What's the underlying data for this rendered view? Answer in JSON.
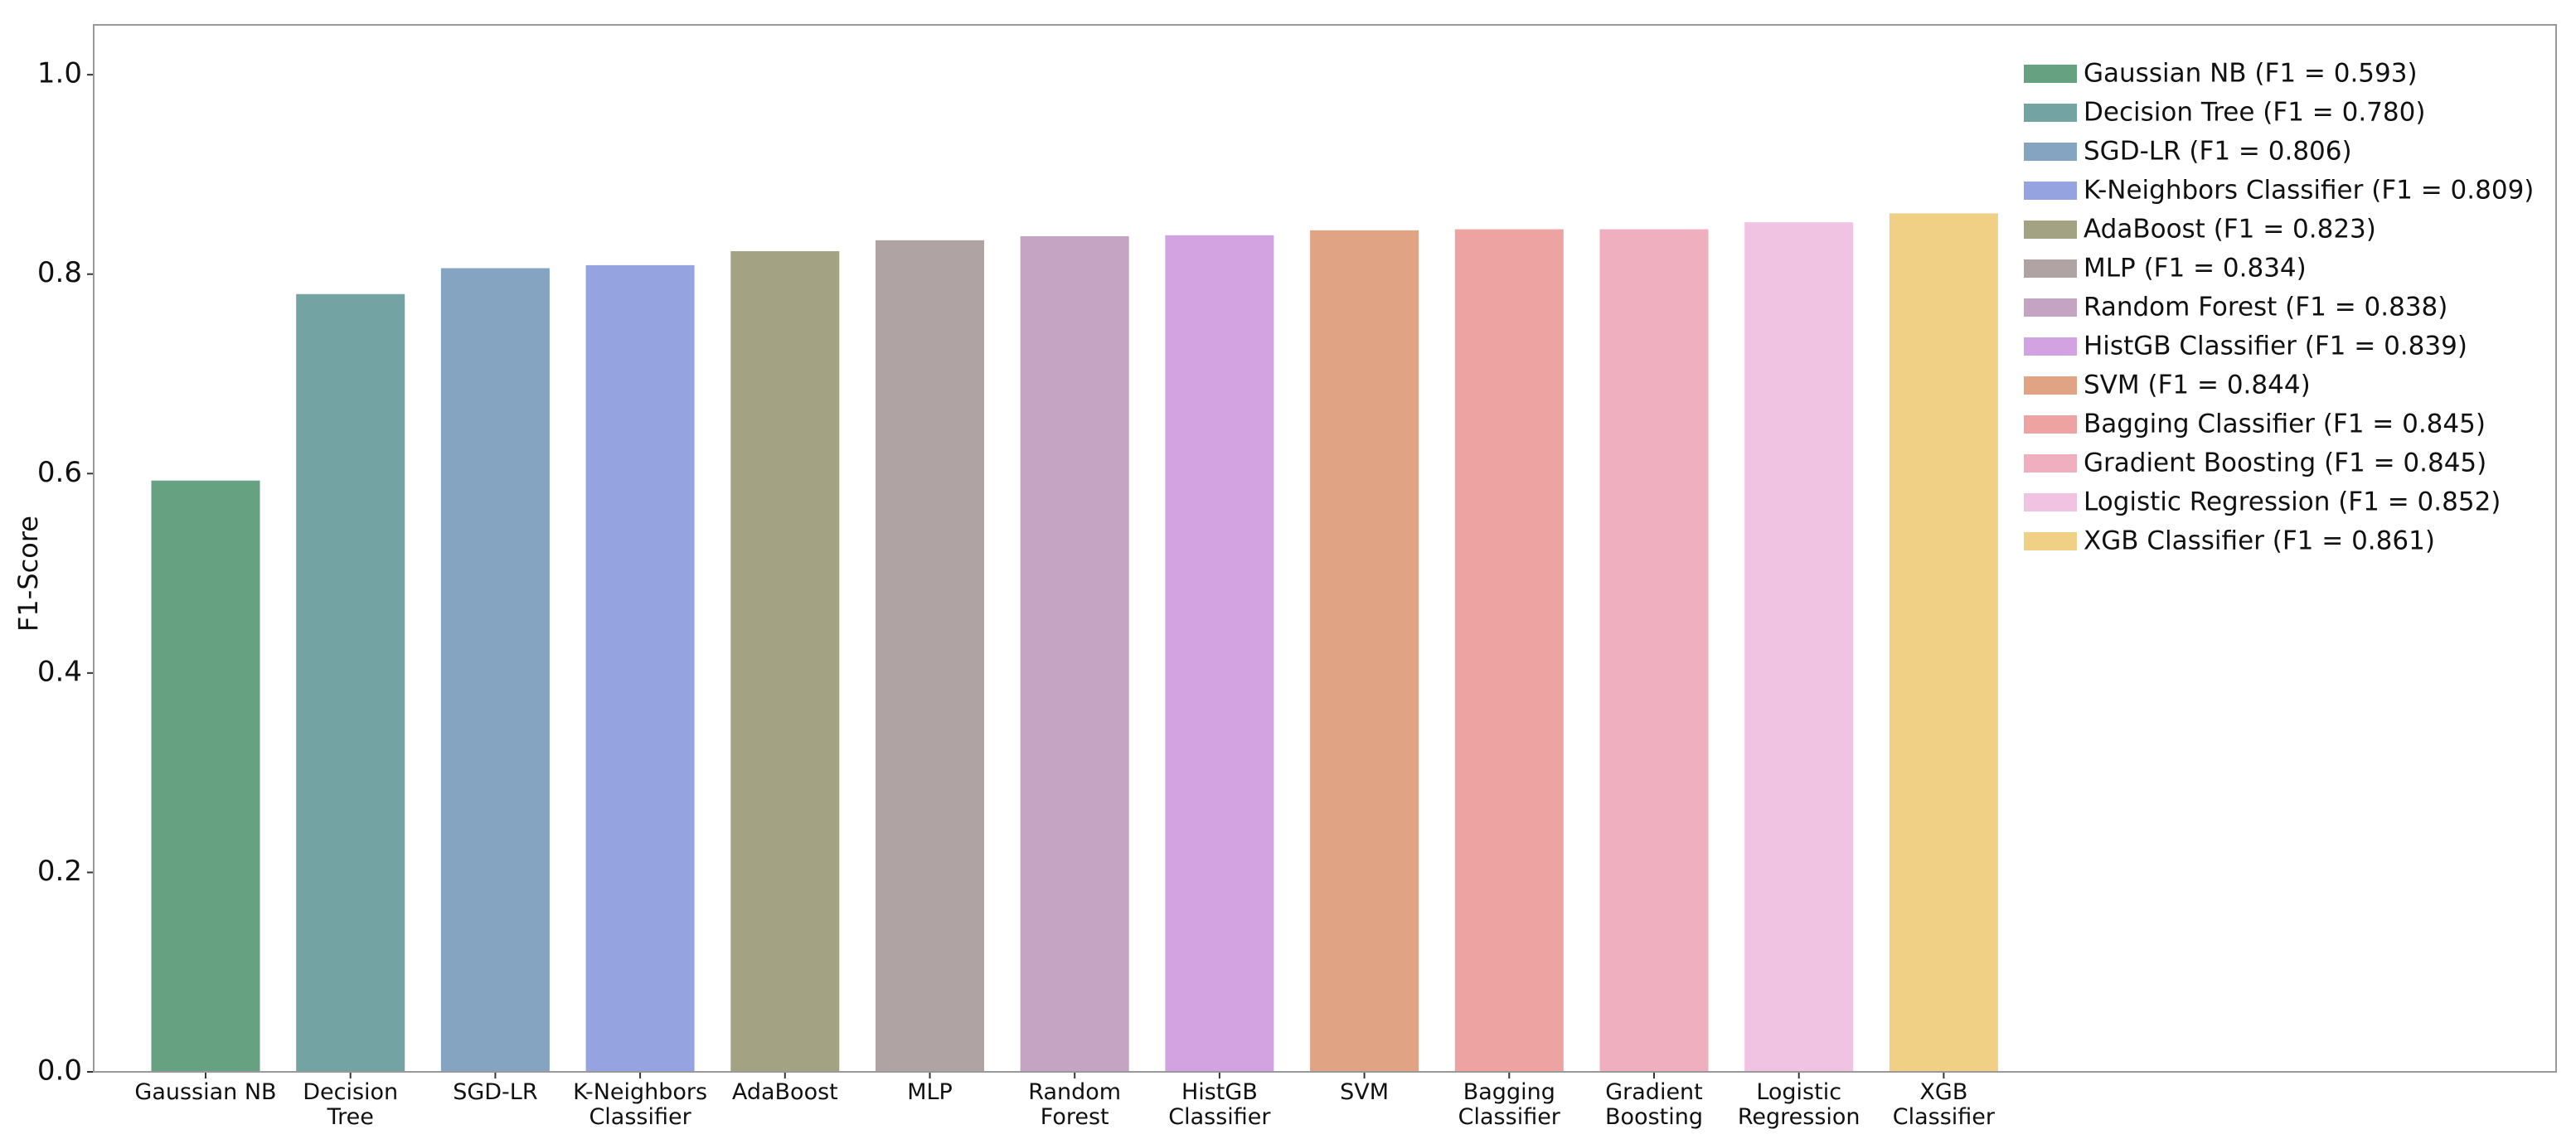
{
  "chart_data": {
    "type": "bar",
    "y_label": "F1-Score",
    "categories": [
      "Gaussian NB",
      "Decision\nTree",
      "SGD-LR",
      "K-Neighbors\nClassifier",
      "AdaBoost",
      "MLP",
      "Random\nForest",
      "HistGB\nClassifier",
      "SVM",
      "Bagging\nClassifier",
      "Gradient\nBoosting",
      "Logistic\nRegression",
      "XGB\nClassifier"
    ],
    "values": [
      0.593,
      0.78,
      0.806,
      0.809,
      0.823,
      0.834,
      0.838,
      0.839,
      0.844,
      0.845,
      0.845,
      0.852,
      0.861
    ],
    "colors": [
      "#66a182",
      "#74a3a3",
      "#84a4c2",
      "#95a4e0",
      "#a3a383",
      "#b0a3a3",
      "#c4a3c3",
      "#d2a3e0",
      "#e0a384",
      "#eea3a3",
      "#f0afbf",
      "#f0c3e2",
      "#f0d085"
    ],
    "legend_labels": [
      "Gaussian NB (F1 = 0.593)",
      "Decision Tree (F1 = 0.780)",
      "SGD-LR (F1 = 0.806)",
      "K-Neighbors Classifier (F1 = 0.809)",
      "AdaBoost (F1 = 0.823)",
      "MLP (F1 = 0.834)",
      "Random Forest (F1 = 0.838)",
      "HistGB Classifier (F1 = 0.839)",
      "SVM (F1 = 0.844)",
      "Bagging Classifier (F1 = 0.845)",
      "Gradient Boosting (F1 = 0.845)",
      "Logistic Regression (F1 = 0.852)",
      "XGB Classifier (F1 = 0.861)"
    ],
    "legend": "upper right",
    "ylim": [
      0,
      1.05
    ],
    "yticks": [
      {
        "value": 0,
        "label": "0.0"
      },
      0.2,
      0.4,
      0.6,
      0.8,
      {
        "value": 1,
        "label": "1.0"
      }
    ]
  }
}
